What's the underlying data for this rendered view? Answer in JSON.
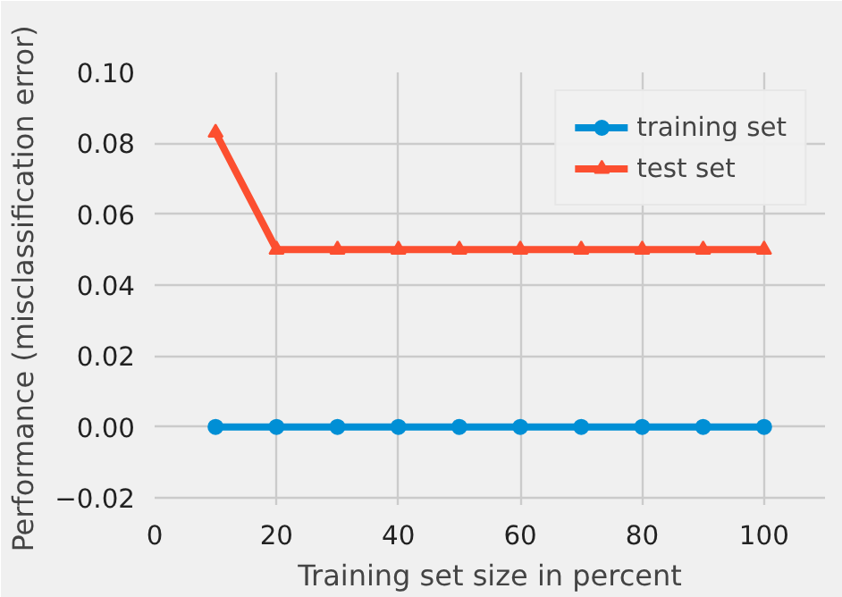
{
  "chart_data": {
    "type": "line",
    "xlabel": "Training set size in percent",
    "ylabel": "Performance (misclassification error)",
    "x": [
      10,
      20,
      30,
      40,
      50,
      60,
      70,
      80,
      90,
      100
    ],
    "series": [
      {
        "name": "training set",
        "color": "#008fd5",
        "marker": "circle",
        "values": [
          0,
          0,
          0,
          0,
          0,
          0,
          0,
          0,
          0,
          0
        ]
      },
      {
        "name": "test set",
        "color": "#fc4f30",
        "marker": "triangle",
        "values": [
          0.083,
          0.05,
          0.05,
          0.05,
          0.05,
          0.05,
          0.05,
          0.05,
          0.05,
          0.05
        ]
      }
    ],
    "xlim": [
      0,
      110
    ],
    "ylim": [
      -0.022,
      0.1
    ],
    "xticks": [
      0,
      20,
      40,
      60,
      80,
      100
    ],
    "yticks": [
      {
        "value": -0.02,
        "label": "−0.02"
      },
      {
        "value": 0,
        "label": "0.00"
      },
      {
        "value": 0.02,
        "label": "0.02"
      },
      {
        "value": 0.04,
        "label": "0.04"
      },
      {
        "value": 0.06,
        "label": "0.06"
      },
      {
        "value": 0.08,
        "label": "0.08"
      },
      {
        "value": 0.1,
        "label": "0.10"
      }
    ],
    "grid": true,
    "legend": "top right",
    "line_style": "solid"
  }
}
